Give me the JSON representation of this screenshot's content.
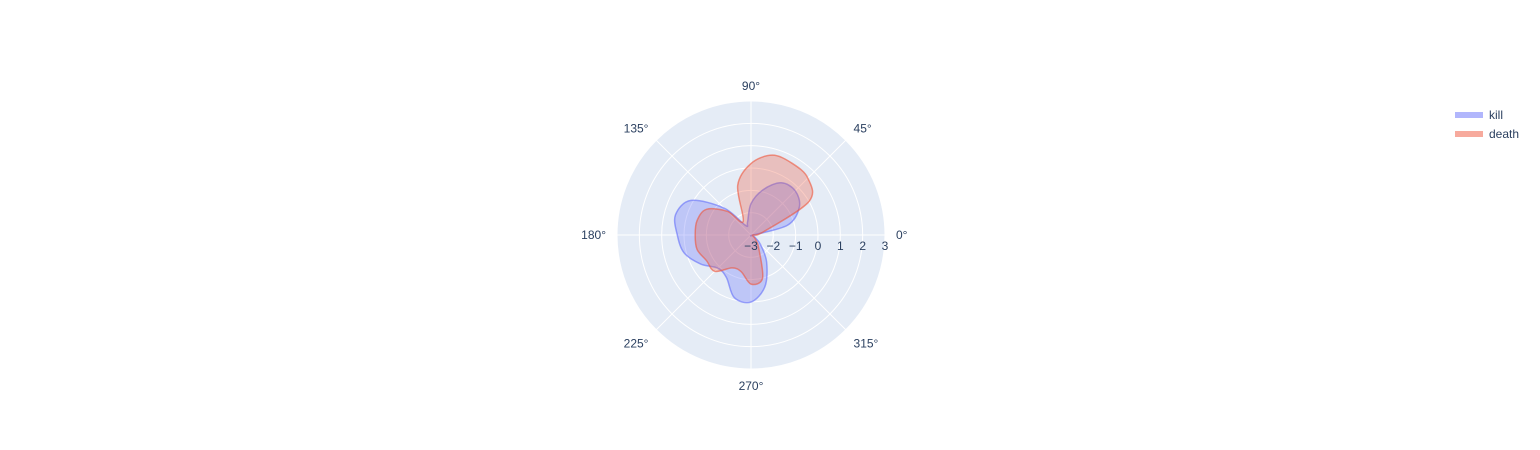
{
  "chart_data": {
    "type": "polar-area",
    "radial_range": [
      -3,
      3
    ],
    "radial_ticks": [
      -3,
      -2,
      -1,
      0,
      1,
      2,
      3
    ],
    "radial_tick_labels": [
      "−3",
      "−2",
      "−1",
      "0",
      "1",
      "2",
      "3"
    ],
    "angular_ticks": [
      0,
      45,
      90,
      135,
      180,
      225,
      270,
      315
    ],
    "angular_tick_labels": [
      "0°",
      "45°",
      "90°",
      "135°",
      "180°",
      "225°",
      "270°",
      "315°"
    ],
    "legend_position": "top-right",
    "background_color": "#e5ecf6",
    "grid": true,
    "series": [
      {
        "name": "kill",
        "color": "#636efa",
        "fill_opacity": 0.3,
        "theta": [
          0,
          15,
          30,
          45,
          60,
          75,
          90,
          105,
          120,
          135,
          150,
          165,
          180,
          195,
          210,
          225,
          240,
          255,
          270,
          285,
          300,
          315,
          330,
          345
        ],
        "r": [
          -2.9,
          -1.3,
          -0.5,
          -0.2,
          -0.3,
          -0.9,
          -1.6,
          -2.4,
          -2.5,
          -1.3,
          0.1,
          0.5,
          0.3,
          0.1,
          -0.4,
          -0.9,
          -0.8,
          -0.1,
          0.0,
          -0.6,
          -1.6,
          -2.4,
          -2.8,
          -2.9
        ]
      },
      {
        "name": "death",
        "color": "#ef553b",
        "fill_opacity": 0.3,
        "theta": [
          0,
          15,
          30,
          45,
          60,
          75,
          90,
          105,
          120,
          135,
          150,
          165,
          180,
          195,
          210,
          225,
          240,
          255,
          270,
          285,
          300,
          315,
          330,
          345
        ],
        "r": [
          -2.9,
          -2.4,
          0.0,
          0.6,
          0.7,
          0.7,
          0.2,
          -0.7,
          -2.3,
          -1.5,
          -0.7,
          -0.5,
          -0.5,
          -0.5,
          -0.7,
          -0.7,
          -1.3,
          -1.3,
          -0.8,
          -1.0,
          -2.3,
          -2.7,
          -2.9,
          -2.9
        ]
      }
    ]
  }
}
